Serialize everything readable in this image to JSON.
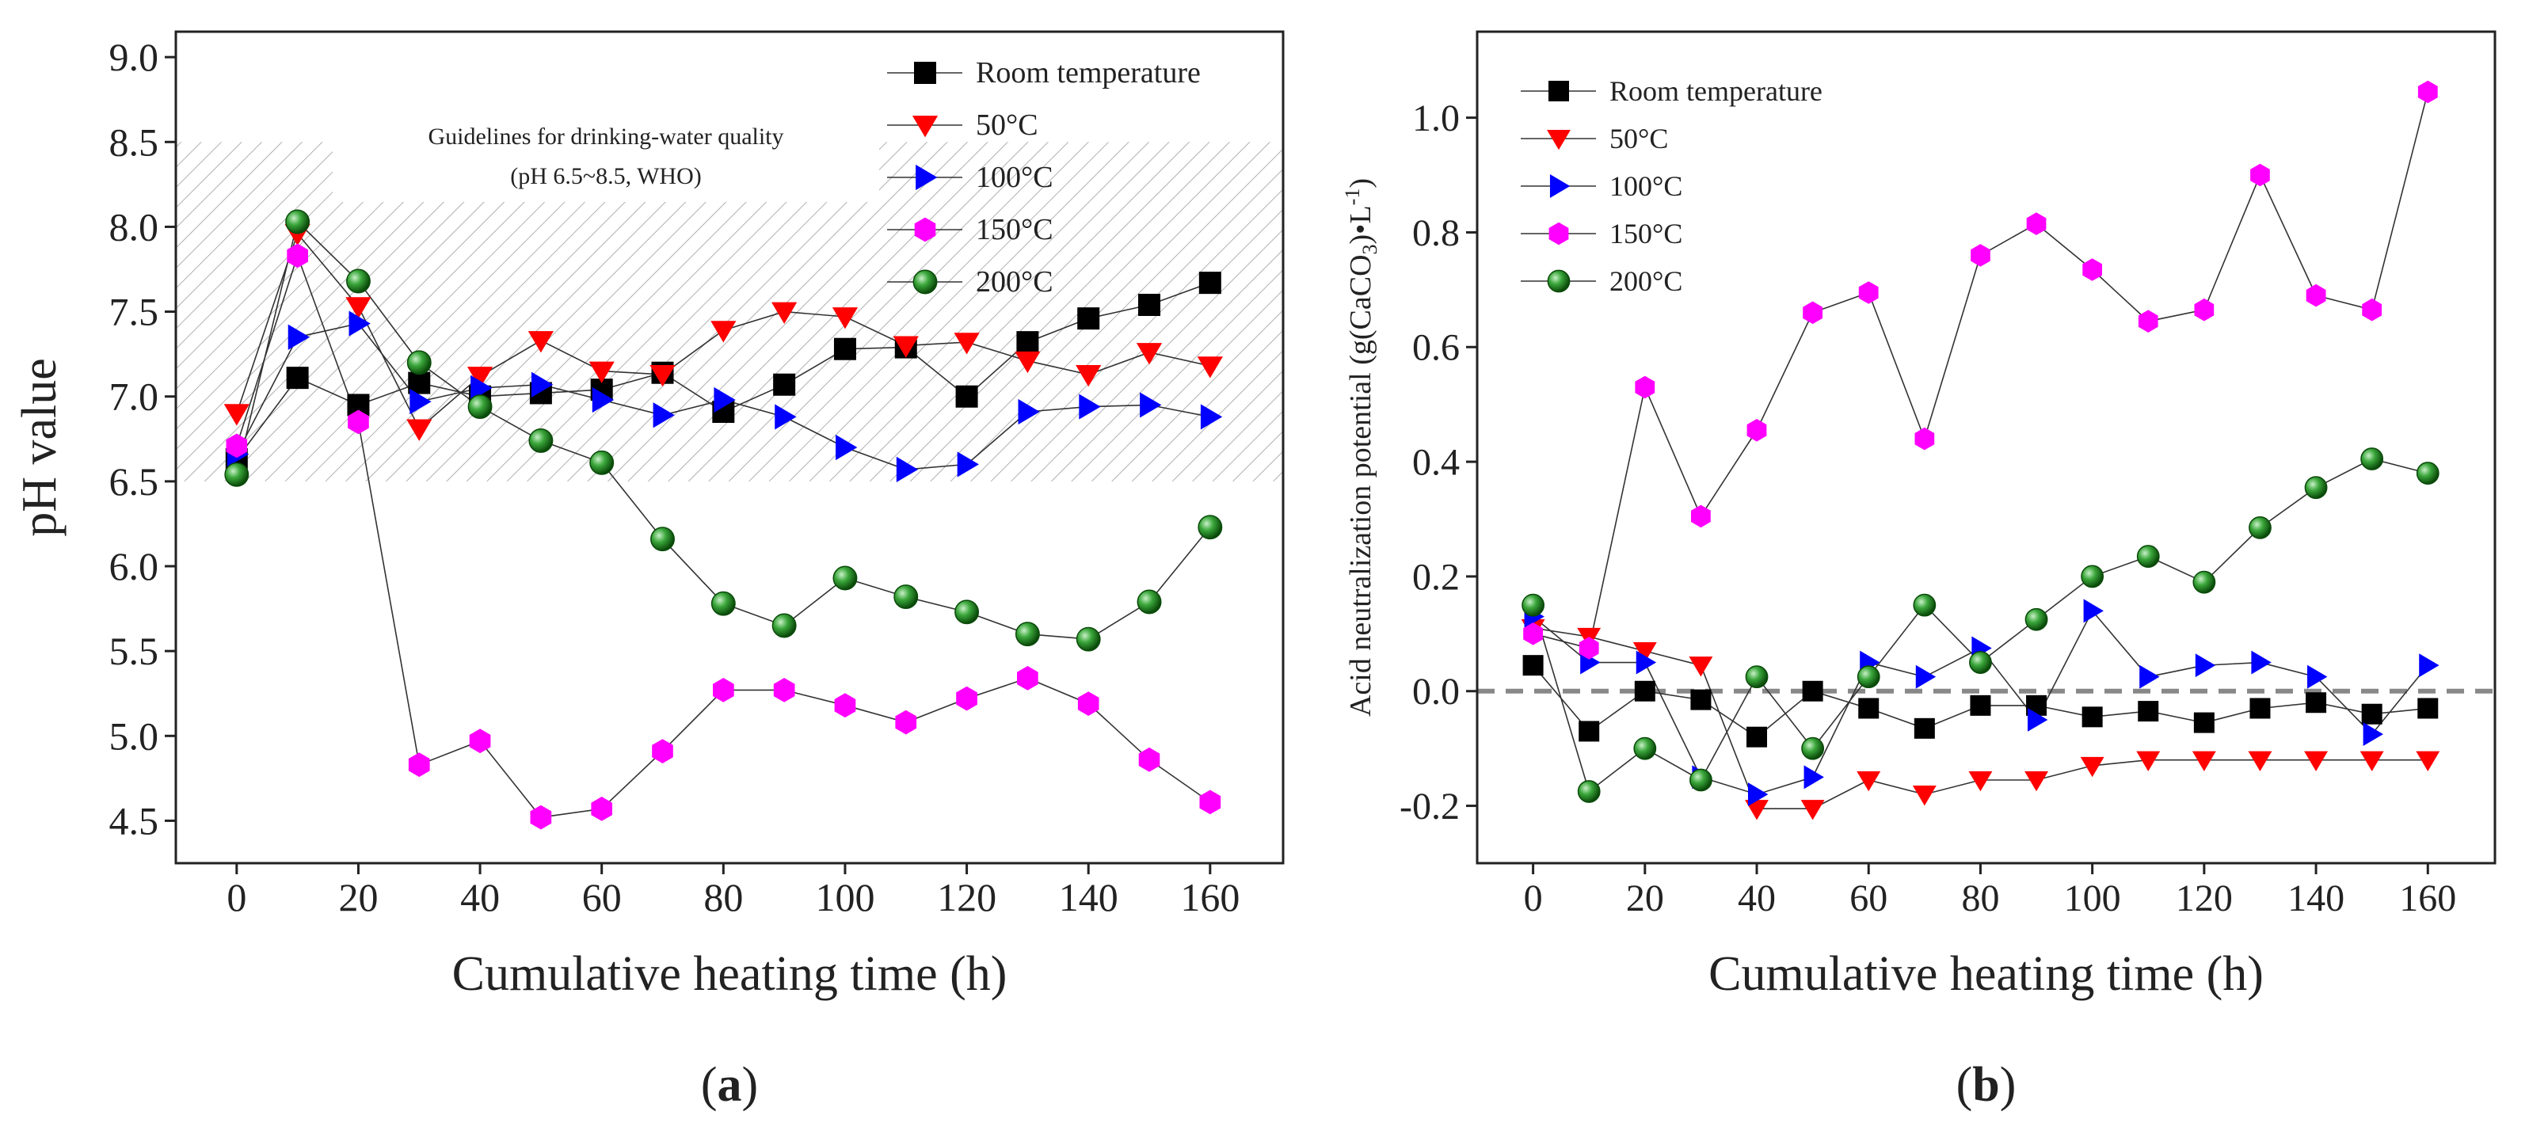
{
  "chart_data": [
    {
      "type": "line",
      "panel_label": "a",
      "xlabel": "Cumulative heating time (h)",
      "ylabel": "pH value",
      "xlim": [
        -10,
        172
      ],
      "ylim": [
        4.25,
        9.15
      ],
      "xticks": [
        0,
        20,
        40,
        60,
        80,
        100,
        120,
        140,
        160
      ],
      "yticks": [
        4.5,
        5.0,
        5.5,
        6.0,
        6.5,
        7.0,
        7.5,
        8.0,
        8.5,
        9.0
      ],
      "ytick_labels": [
        "4.5",
        "5.0",
        "5.5",
        "6.0",
        "6.5",
        "7.0",
        "7.5",
        "8.0",
        "8.5",
        "9.0"
      ],
      "guideline_text": [
        "Guidelines for drinking-water quality",
        "(pH 6.5~8.5, WHO)"
      ],
      "guideline_band": [
        6.5,
        8.5
      ],
      "x": [
        0,
        10,
        20,
        30,
        40,
        50,
        60,
        70,
        80,
        90,
        100,
        110,
        120,
        130,
        140,
        150,
        160
      ],
      "series": [
        {
          "name": "Room temperature",
          "marker": "square",
          "color": "#000000",
          "values": [
            6.63,
            7.11,
            6.95,
            7.08,
            7.0,
            7.02,
            7.04,
            7.14,
            6.91,
            7.07,
            7.28,
            7.29,
            7.0,
            7.32,
            7.46,
            7.54,
            7.67
          ]
        },
        {
          "name": "50°C",
          "marker": "triangle-down",
          "color": "#ff0000",
          "values": [
            6.9,
            7.96,
            7.53,
            6.81,
            7.12,
            7.33,
            7.15,
            7.13,
            7.39,
            7.5,
            7.47,
            7.3,
            7.32,
            7.21,
            7.13,
            7.26,
            7.18
          ]
        },
        {
          "name": "100°C",
          "marker": "triangle-right",
          "color": "#0000ff",
          "values": [
            6.66,
            7.35,
            7.43,
            6.97,
            7.05,
            7.07,
            6.98,
            6.89,
            6.98,
            6.88,
            6.7,
            6.57,
            6.6,
            6.91,
            6.94,
            6.95,
            6.88
          ]
        },
        {
          "name": "150°C",
          "marker": "hexagon",
          "color": "#ff00ff",
          "values": [
            6.71,
            7.83,
            6.85,
            4.83,
            4.97,
            4.52,
            4.57,
            4.91,
            5.27,
            5.27,
            5.18,
            5.08,
            5.22,
            5.34,
            5.19,
            4.86,
            4.61
          ]
        },
        {
          "name": "200°C",
          "marker": "sphere",
          "color": "#1a8a1a",
          "values": [
            6.54,
            8.03,
            7.68,
            7.2,
            6.94,
            6.74,
            6.61,
            6.16,
            5.78,
            5.65,
            5.93,
            5.82,
            5.73,
            5.6,
            5.57,
            5.79,
            6.23
          ]
        }
      ]
    },
    {
      "type": "line",
      "panel_label": "b",
      "xlabel": "Cumulative heating time (h)",
      "ylabel_main": "Acid neutralization potential (g(CaCO",
      "ylabel_sub": "3",
      "ylabel_mid": ")•L",
      "ylabel_sup": "-1",
      "ylabel_end": ")",
      "xlim": [
        -10,
        172
      ],
      "ylim": [
        -0.3,
        1.15
      ],
      "xticks": [
        0,
        20,
        40,
        60,
        80,
        100,
        120,
        140,
        160
      ],
      "yticks": [
        -0.2,
        0.0,
        0.2,
        0.4,
        0.6,
        0.8,
        1.0
      ],
      "ytick_labels": [
        "-0.2",
        "0.0",
        "0.2",
        "0.4",
        "0.6",
        "0.8",
        "1.0"
      ],
      "zero_line": 0.0,
      "x": [
        0,
        10,
        20,
        30,
        40,
        50,
        60,
        70,
        80,
        90,
        100,
        110,
        120,
        130,
        140,
        150,
        160
      ],
      "series": [
        {
          "name": "Room temperature",
          "marker": "square",
          "color": "#000000",
          "values": [
            0.045,
            -0.07,
            0.0,
            -0.015,
            -0.08,
            0.0,
            -0.03,
            -0.065,
            -0.025,
            -0.025,
            -0.045,
            -0.035,
            -0.055,
            -0.03,
            -0.02,
            -0.04,
            -0.03
          ]
        },
        {
          "name": "50°C",
          "marker": "triangle-down",
          "color": "#ff0000",
          "values": [
            0.11,
            0.095,
            0.07,
            0.045,
            -0.205,
            -0.205,
            -0.155,
            -0.18,
            -0.155,
            -0.155,
            -0.13,
            -0.12,
            -0.12,
            -0.12,
            -0.12,
            -0.12,
            -0.12
          ]
        },
        {
          "name": "100°C",
          "marker": "triangle-right",
          "color": "#0000ff",
          "values": [
            0.13,
            0.05,
            0.05,
            -0.15,
            -0.18,
            -0.15,
            0.05,
            0.025,
            0.075,
            -0.05,
            0.14,
            0.025,
            0.045,
            0.05,
            0.025,
            -0.075,
            0.045
          ]
        },
        {
          "name": "150°C",
          "marker": "hexagon",
          "color": "#ff00ff",
          "values": [
            0.1,
            0.075,
            0.53,
            0.305,
            0.455,
            0.66,
            0.695,
            0.44,
            0.76,
            0.815,
            0.735,
            0.645,
            0.665,
            0.9,
            0.69,
            0.665,
            1.045
          ]
        },
        {
          "name": "200°C",
          "marker": "sphere",
          "color": "#1a8a1a",
          "values": [
            0.15,
            -0.175,
            -0.1,
            -0.155,
            0.025,
            -0.1,
            0.025,
            0.15,
            0.05,
            0.125,
            0.2,
            0.235,
            0.19,
            0.285,
            0.355,
            0.405,
            0.38
          ]
        }
      ]
    }
  ]
}
